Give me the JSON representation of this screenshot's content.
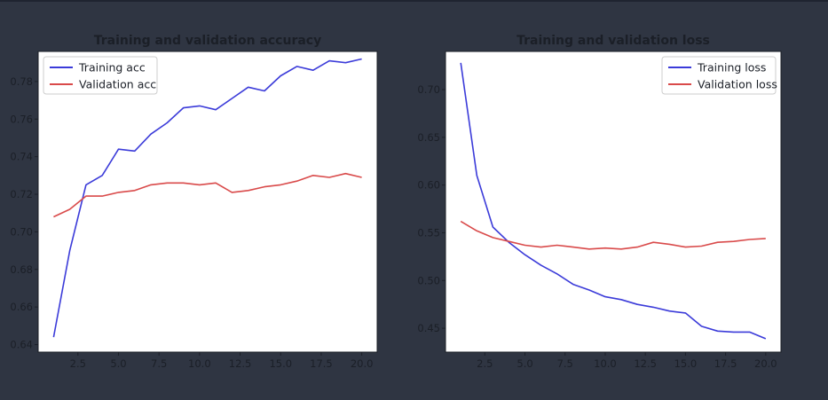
{
  "chart_data": [
    {
      "type": "line",
      "title": "Training and validation accuracy",
      "xlabel": "",
      "ylabel": "",
      "xlim": [
        0.05,
        20.95
      ],
      "ylim": [
        0.636,
        0.796
      ],
      "xticks": [
        2.5,
        5.0,
        7.5,
        10.0,
        12.5,
        15.0,
        17.5,
        20.0
      ],
      "xtick_labels": [
        "2.5",
        "5.0",
        "7.5",
        "10.0",
        "12.5",
        "15.0",
        "17.5",
        "20.0"
      ],
      "yticks": [
        0.64,
        0.66,
        0.68,
        0.7,
        0.72,
        0.74,
        0.76,
        0.78
      ],
      "ytick_labels": [
        "0.64",
        "0.66",
        "0.68",
        "0.70",
        "0.72",
        "0.74",
        "0.76",
        "0.78"
      ],
      "grid": false,
      "legend_position": "top-left",
      "x": [
        1,
        2,
        3,
        4,
        5,
        6,
        7,
        8,
        9,
        10,
        11,
        12,
        13,
        14,
        15,
        16,
        17,
        18,
        19,
        20
      ],
      "series": [
        {
          "name": "Training acc",
          "color": "#3b3bd9",
          "values": [
            0.644,
            0.69,
            0.725,
            0.73,
            0.744,
            0.743,
            0.752,
            0.758,
            0.766,
            0.767,
            0.765,
            0.771,
            0.777,
            0.775,
            0.783,
            0.788,
            0.786,
            0.791,
            0.79,
            0.792
          ]
        },
        {
          "name": "Validation acc",
          "color": "#d94a4a",
          "values": [
            0.708,
            0.712,
            0.719,
            0.719,
            0.721,
            0.722,
            0.725,
            0.726,
            0.726,
            0.725,
            0.726,
            0.721,
            0.722,
            0.724,
            0.725,
            0.727,
            0.73,
            0.729,
            0.731,
            0.729
          ]
        }
      ]
    },
    {
      "type": "line",
      "title": "Training and validation loss",
      "xlabel": "",
      "ylabel": "",
      "xlim": [
        0.05,
        20.95
      ],
      "ylim": [
        0.425,
        0.74
      ],
      "xticks": [
        2.5,
        5.0,
        7.5,
        10.0,
        12.5,
        15.0,
        17.5,
        20.0
      ],
      "xtick_labels": [
        "2.5",
        "5.0",
        "7.5",
        "10.0",
        "12.5",
        "15.0",
        "17.5",
        "20.0"
      ],
      "yticks": [
        0.45,
        0.5,
        0.55,
        0.6,
        0.65,
        0.7
      ],
      "ytick_labels": [
        "0.45",
        "0.50",
        "0.55",
        "0.60",
        "0.65",
        "0.70"
      ],
      "grid": false,
      "legend_position": "top-right",
      "x": [
        1,
        2,
        3,
        4,
        5,
        6,
        7,
        8,
        9,
        10,
        11,
        12,
        13,
        14,
        15,
        16,
        17,
        18,
        19,
        20
      ],
      "series": [
        {
          "name": "Training loss",
          "color": "#3b3bd9",
          "values": [
            0.728,
            0.61,
            0.556,
            0.54,
            0.527,
            0.516,
            0.507,
            0.496,
            0.49,
            0.483,
            0.48,
            0.475,
            0.472,
            0.468,
            0.466,
            0.452,
            0.447,
            0.446,
            0.446,
            0.439
          ]
        },
        {
          "name": "Validation loss",
          "color": "#d94a4a",
          "values": [
            0.562,
            0.552,
            0.545,
            0.541,
            0.537,
            0.535,
            0.537,
            0.535,
            0.533,
            0.534,
            0.533,
            0.535,
            0.54,
            0.538,
            0.535,
            0.536,
            0.54,
            0.541,
            0.543,
            0.544
          ]
        }
      ]
    }
  ]
}
